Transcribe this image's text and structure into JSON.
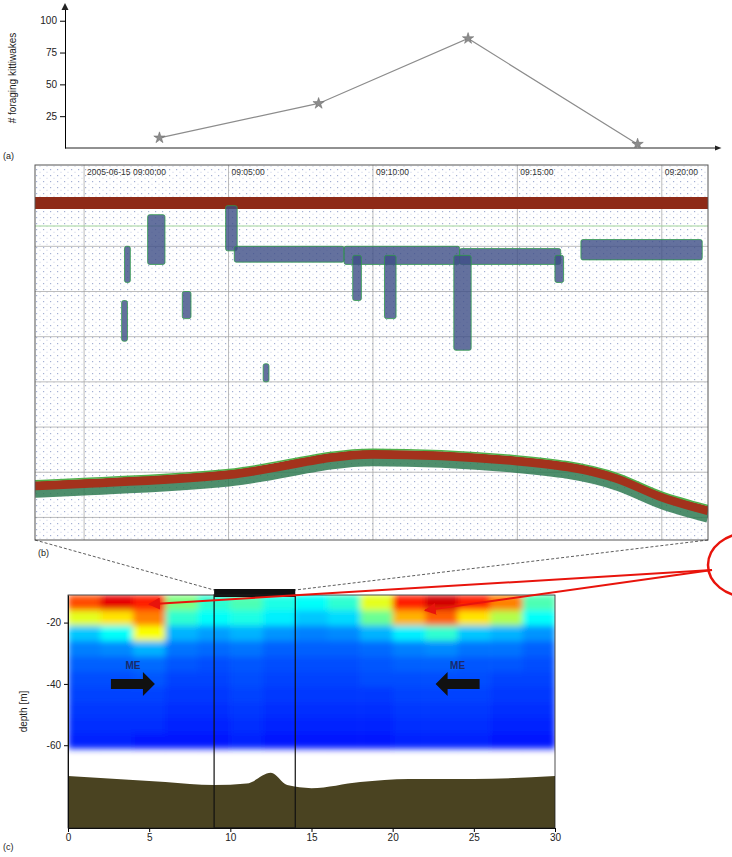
{
  "chart_data": [
    {
      "type": "line",
      "panel_label": "(a)",
      "y_label": "# foraging kittiwakes",
      "x": [
        14.6,
        39.2,
        62.3,
        88.5
      ],
      "values": [
        8,
        35,
        86,
        3
      ],
      "xlim": [
        0,
        100
      ],
      "ylim": [
        0,
        110
      ],
      "yticks": [
        25,
        50,
        75,
        100
      ],
      "tick_labels": "y",
      "marker": "star",
      "color": "#8c8c8c"
    },
    {
      "type": "echogram",
      "panel_label": "(b)",
      "xlim": [
        -1.7,
        21.6
      ],
      "xticks": [
        {
          "value": 0,
          "label": "2005-06-15 09:00:00"
        },
        {
          "value": 5,
          "label": "09:05:00"
        },
        {
          "value": 10,
          "label": "09:10:00"
        },
        {
          "value": 15,
          "label": "09:15:00"
        },
        {
          "value": 20,
          "label": "09:20:00"
        }
      ],
      "ylim": [
        -8,
        75
      ],
      "yticks": [
        10,
        20,
        30,
        40,
        50,
        60,
        70
      ],
      "tick_labels": "x",
      "grid": true,
      "seabed": {
        "x": [
          -1.7,
          0,
          5,
          10,
          15,
          18.5,
          20,
          21.6
        ],
        "depth": [
          63,
          62.5,
          60.5,
          56,
          57.5,
          61.5,
          65.5,
          68.5
        ]
      },
      "schools": {
        "x0": [
          1.4,
          1.3,
          2.2,
          3.4,
          4.9,
          6.2,
          5.2,
          9.0,
          13.0,
          9.3,
          10.4,
          12.8,
          16.3,
          17.2
        ],
        "x1": [
          1.6,
          1.5,
          2.8,
          3.7,
          5.3,
          6.4,
          9.0,
          13.0,
          16.5,
          9.6,
          10.8,
          13.4,
          16.6,
          21.4
        ],
        "top": [
          10,
          22,
          3,
          20,
          1,
          36,
          10,
          10,
          10.5,
          12,
          12,
          12,
          12,
          8.5
        ],
        "bottom": [
          18,
          31,
          14,
          26,
          11,
          40,
          13.5,
          14,
          14,
          22,
          26,
          33,
          18,
          13
        ]
      },
      "color": "#3d4e86"
    },
    {
      "type": "heatmap",
      "panel_label": "(c)",
      "y_label": "depth [m]",
      "xlim": [
        0,
        30
      ],
      "xticks": [
        0,
        5,
        10,
        15,
        20,
        25,
        30
      ],
      "ylim": [
        -87,
        -11
      ],
      "yticks": [
        -20,
        -40,
        -60
      ],
      "x_edges": [
        0,
        2,
        4,
        6,
        8,
        10,
        12,
        14,
        16,
        18,
        20,
        22,
        24,
        26,
        28,
        30
      ],
      "y_edges": [
        -11,
        -16,
        -21,
        -26,
        -31,
        -36,
        -41,
        -46,
        -51,
        -56,
        -61
      ],
      "cells": [
        [
          0.8,
          0.9,
          0.85,
          0.5,
          0.42,
          0.45,
          0.4,
          0.38,
          0.42,
          0.6,
          0.85,
          0.92,
          0.85,
          0.75,
          0.45
        ],
        [
          0.6,
          0.65,
          0.75,
          0.42,
          0.38,
          0.4,
          0.36,
          0.32,
          0.34,
          0.48,
          0.7,
          0.78,
          0.65,
          0.55,
          0.38
        ],
        [
          0.32,
          0.38,
          0.62,
          0.3,
          0.28,
          0.3,
          0.27,
          0.25,
          0.26,
          0.3,
          0.36,
          0.42,
          0.32,
          0.3,
          0.27
        ],
        [
          0.25,
          0.26,
          0.3,
          0.24,
          0.23,
          0.24,
          0.22,
          0.22,
          0.22,
          0.23,
          0.25,
          0.26,
          0.24,
          0.24,
          0.22
        ],
        [
          0.22,
          0.22,
          0.23,
          0.21,
          0.2,
          0.21,
          0.2,
          0.2,
          0.2,
          0.21,
          0.22,
          0.22,
          0.21,
          0.21,
          0.2
        ],
        [
          0.2,
          0.2,
          0.21,
          0.19,
          0.19,
          0.2,
          0.19,
          0.19,
          0.19,
          0.2,
          0.2,
          0.2,
          0.2,
          0.19,
          0.19
        ],
        [
          0.19,
          0.19,
          0.19,
          0.18,
          0.18,
          0.19,
          0.18,
          0.18,
          0.18,
          0.18,
          0.19,
          0.19,
          0.19,
          0.18,
          0.18
        ],
        [
          0.18,
          0.18,
          0.18,
          0.17,
          0.17,
          0.18,
          0.17,
          0.17,
          0.17,
          0.17,
          0.18,
          0.18,
          0.18,
          0.17,
          0.17
        ],
        [
          0.17,
          0.17,
          0.17,
          0.16,
          0.16,
          0.17,
          0.16,
          0.16,
          0.16,
          0.16,
          0.17,
          0.17,
          0.17,
          0.16,
          0.16
        ],
        [
          0.16,
          0.16,
          0.15,
          0.15,
          0.15,
          0.16,
          0.15,
          0.15,
          0.15,
          0.15,
          0.16,
          0.16,
          0.16,
          0.15,
          0.15
        ]
      ],
      "zlim": [
        0,
        1
      ],
      "seabed": {
        "x": [
          0,
          3,
          6,
          9,
          11,
          12.5,
          13.5,
          15,
          18,
          21,
          25,
          30
        ],
        "depth": [
          -70,
          -71,
          -72,
          -73,
          -72.5,
          -69,
          -73,
          -74,
          -72,
          -71,
          -71,
          -70
        ]
      },
      "highlight": [
        9,
        14
      ],
      "annotations": [
        {
          "text": "ME",
          "x": 4,
          "y": -40,
          "direction": "right"
        },
        {
          "text": "ME",
          "x": 24,
          "y": -40,
          "direction": "left"
        }
      ],
      "callout": {
        "x": [
          5,
          22
        ],
        "y": [
          -14,
          -16
        ]
      }
    }
  ]
}
